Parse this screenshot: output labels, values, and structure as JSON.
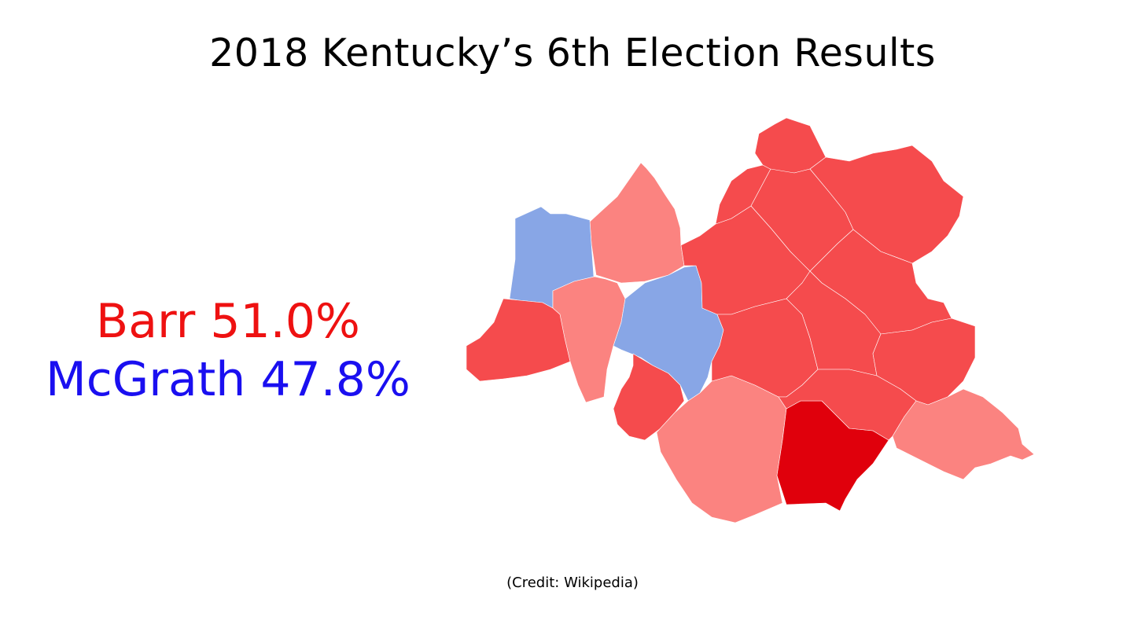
{
  "title": "2018 Kentucky’s 6th Election Results",
  "results": [
    {
      "text": "Barr 51.0%",
      "color": "#ee1111"
    },
    {
      "text": "McGrath 47.8%",
      "color": "#1a0ff0"
    }
  ],
  "credit": "(Credit: Wikipedia)",
  "colors": {
    "republican_light": "#fb8380",
    "republican_medium": "#f54b4d",
    "republican_dark": "#e0000c",
    "democrat_light": "#88a6e6",
    "background": "#ffffff",
    "county_border": "#ffffff"
  }
}
